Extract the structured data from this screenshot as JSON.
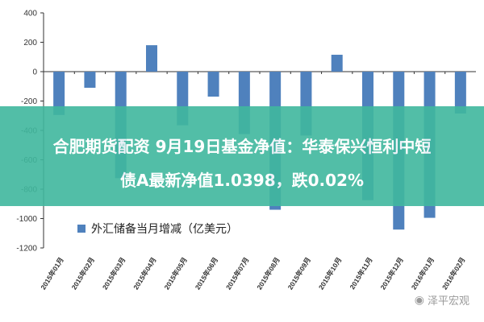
{
  "overlay": {
    "line1": "合肥期货配资 9月19日基金净值：华泰保兴恒利中短",
    "line2": "债A最新净值1.0398，跌0.02%"
  },
  "watermark": {
    "text": "泽平宏观",
    "icon": "wechat-icon"
  },
  "colors": {
    "bar": "#4F81BD",
    "axis": "#333333",
    "overlay": "#40B89E"
  },
  "chart_data": {
    "type": "bar",
    "categories": [
      "2015年01月",
      "2015年02月",
      "2015年03月",
      "2015年04月",
      "2015年05月",
      "2015年06月",
      "2015年07月",
      "2015年08月",
      "2015年09月",
      "2015年10月",
      "2015年11月",
      "2015年12月",
      "2016年01月",
      "2016年02月"
    ],
    "series": [
      {
        "name": "外汇储备当月增减（亿美元）",
        "values": [
          -295,
          -110,
          -725,
          180,
          -365,
          -170,
          -425,
          -940,
          -435,
          115,
          -875,
          -1075,
          -995,
          -285
        ]
      }
    ],
    "yticks": [
      400,
      200,
      0,
      -200,
      -400,
      -600,
      -800,
      -1000,
      -1200
    ],
    "ylim": [
      -1200,
      400
    ],
    "grid": false,
    "legend": "bottom"
  }
}
